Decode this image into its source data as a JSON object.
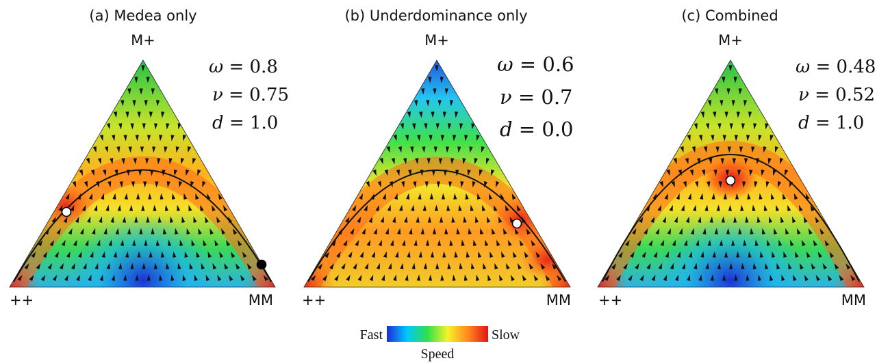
{
  "panels": [
    {
      "id": "a",
      "title": "(a) Medea only",
      "vertices": {
        "top": "M+",
        "left": "++",
        "right": "MM"
      },
      "params": [
        {
          "symbol": "ω",
          "value": "0.8"
        },
        {
          "symbol": "ν",
          "value": "0.75"
        },
        {
          "symbol": "d",
          "value": "1.0"
        }
      ],
      "speed_field": {
        "slow_band": "orange-red along the curve",
        "fast_zone": "blue at the bottom centre",
        "top_vertex_color": "green"
      },
      "equilibria": [
        {
          "kind": "open",
          "label": "unstable"
        },
        {
          "kind": "filled",
          "label": "stable"
        }
      ]
    },
    {
      "id": "b",
      "title": "(b) Underdominance only",
      "vertices": {
        "top": "M+",
        "left": "++",
        "right": "MM"
      },
      "params": [
        {
          "symbol": "ω",
          "value": "0.6"
        },
        {
          "symbol": "ν",
          "value": "0.7"
        },
        {
          "symbol": "d",
          "value": "0.0"
        }
      ],
      "speed_field": {
        "slow_band": "orange-red near the right side of the curve",
        "fast_zone": "blue at the top vertex",
        "top_vertex_color": "blue"
      },
      "equilibria": [
        {
          "kind": "open",
          "label": "unstable"
        }
      ]
    },
    {
      "id": "c",
      "title": "(c) Combined",
      "vertices": {
        "top": "M+",
        "left": "++",
        "right": "MM"
      },
      "params": [
        {
          "symbol": "ω",
          "value": "0.48"
        },
        {
          "symbol": "ν",
          "value": "0.52"
        },
        {
          "symbol": "d",
          "value": "1.0"
        }
      ],
      "speed_field": {
        "slow_band": "orange-red near the top of the curve",
        "fast_zone": "blue at the bottom centre",
        "top_vertex_color": "green"
      },
      "equilibria": [
        {
          "kind": "open",
          "label": "unstable"
        }
      ]
    }
  ],
  "colorbar": {
    "left_label": "Fast",
    "right_label": "Slow",
    "title": "Speed",
    "colors": [
      "#1f2bd8",
      "#00c8ff",
      "#2ee04a",
      "#f6f22a",
      "#ff8a1a",
      "#e0141a"
    ]
  },
  "colors": {
    "curve": "#111111",
    "arrows": "#111111",
    "open_equilibrium_fill": "#ffffff",
    "filled_equilibrium_fill": "#000000"
  }
}
